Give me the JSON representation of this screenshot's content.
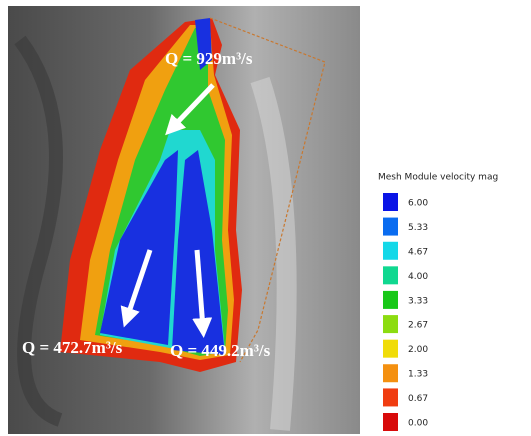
{
  "annotations": [
    "Q = 929m³/s",
    "Q = 472.7m³/s",
    "Q = 449.2m³/s"
  ],
  "legend": {
    "title": "Mesh Module velocity mag",
    "items": [
      {
        "value": 6,
        "label": "6.00",
        "color": "#0a14e6"
      },
      {
        "value": 5.33,
        "label": "5.33",
        "color": "#0a6cf0"
      },
      {
        "value": 4.67,
        "label": "4.67",
        "color": "#14d8e8"
      },
      {
        "value": 4,
        "label": "4.00",
        "color": "#10d890"
      },
      {
        "value": 3.33,
        "label": "3.33",
        "color": "#18c818"
      },
      {
        "value": 2.67,
        "label": "2.67",
        "color": "#8cdc10"
      },
      {
        "value": 2,
        "label": "2.00",
        "color": "#f0dc08"
      },
      {
        "value": 1.33,
        "label": "1.33",
        "color": "#f49010"
      },
      {
        "value": 0.67,
        "label": "0.67",
        "color": "#f03c10"
      },
      {
        "value": 0,
        "label": "0.00",
        "color": "#d80a0a"
      }
    ]
  }
}
